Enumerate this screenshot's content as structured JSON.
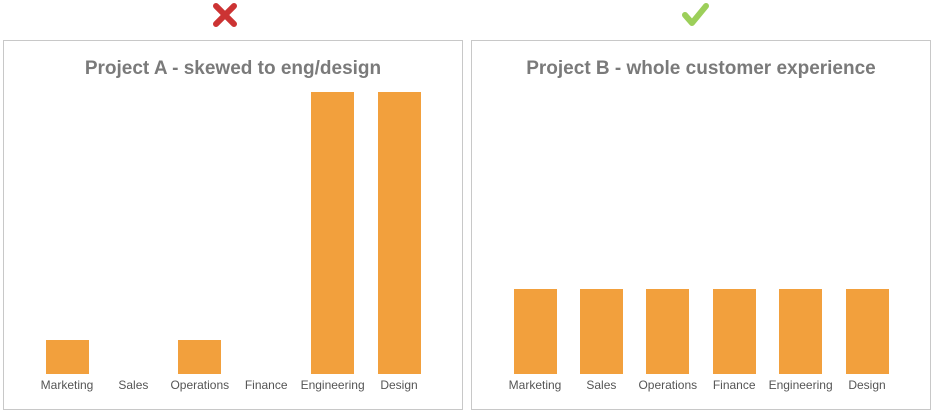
{
  "icons": {
    "panel_a_mark": "cross-icon",
    "panel_b_mark": "checkmark-icon"
  },
  "colors": {
    "bar": "#f2a03d",
    "cross": "#cc3333",
    "check": "#9ccf5a",
    "title": "#7a7a7a"
  },
  "chart_data": [
    {
      "type": "bar",
      "title": "Project A - skewed to eng/design",
      "categories": [
        "Marketing",
        "Sales",
        "Operations",
        "Finance",
        "Engineering",
        "Design"
      ],
      "values": [
        12,
        0,
        12,
        0,
        100,
        100
      ],
      "ylim": [
        0,
        100
      ],
      "grid": false,
      "xlabel": "",
      "ylabel": ""
    },
    {
      "type": "bar",
      "title": "Project B - whole customer experience",
      "categories": [
        "Marketing",
        "Sales",
        "Operations",
        "Finance",
        "Engineering",
        "Design"
      ],
      "values": [
        30,
        30,
        30,
        30,
        30,
        30
      ],
      "ylim": [
        0,
        100
      ],
      "grid": false,
      "xlabel": "",
      "ylabel": ""
    }
  ]
}
